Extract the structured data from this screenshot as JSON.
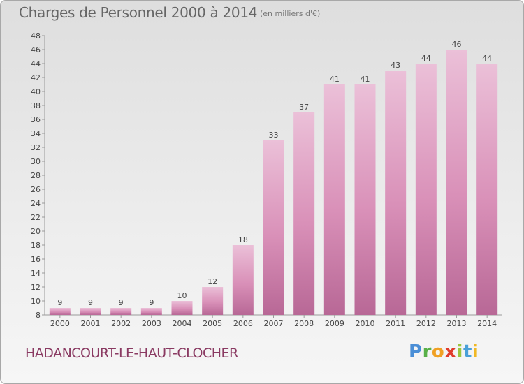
{
  "header": {
    "title": "Charges de Personnel 2000 à 2014",
    "subtitle": "(en milliers d'€)"
  },
  "footer": {
    "commune": "HADANCOURT-LE-HAUT-CLOCHER",
    "logo_text": "Proxiti"
  },
  "colors": {
    "bar": "#d990b8",
    "bar_light": "#ebc0d8",
    "bar_dark": "#b86896"
  },
  "chart_data": {
    "type": "bar",
    "title": "Charges de Personnel 2000 à 2014",
    "subtitle": "(en milliers d'€)",
    "categories": [
      "2000",
      "2001",
      "2002",
      "2003",
      "2004",
      "2005",
      "2006",
      "2007",
      "2008",
      "2009",
      "2010",
      "2011",
      "2012",
      "2013",
      "2014"
    ],
    "values": [
      9,
      9,
      9,
      9,
      10,
      12,
      18,
      33,
      37,
      41,
      41,
      43,
      44,
      46,
      44
    ],
    "ylim": [
      8,
      48
    ],
    "ytick_step": 2,
    "grid": false,
    "legend": "none"
  }
}
